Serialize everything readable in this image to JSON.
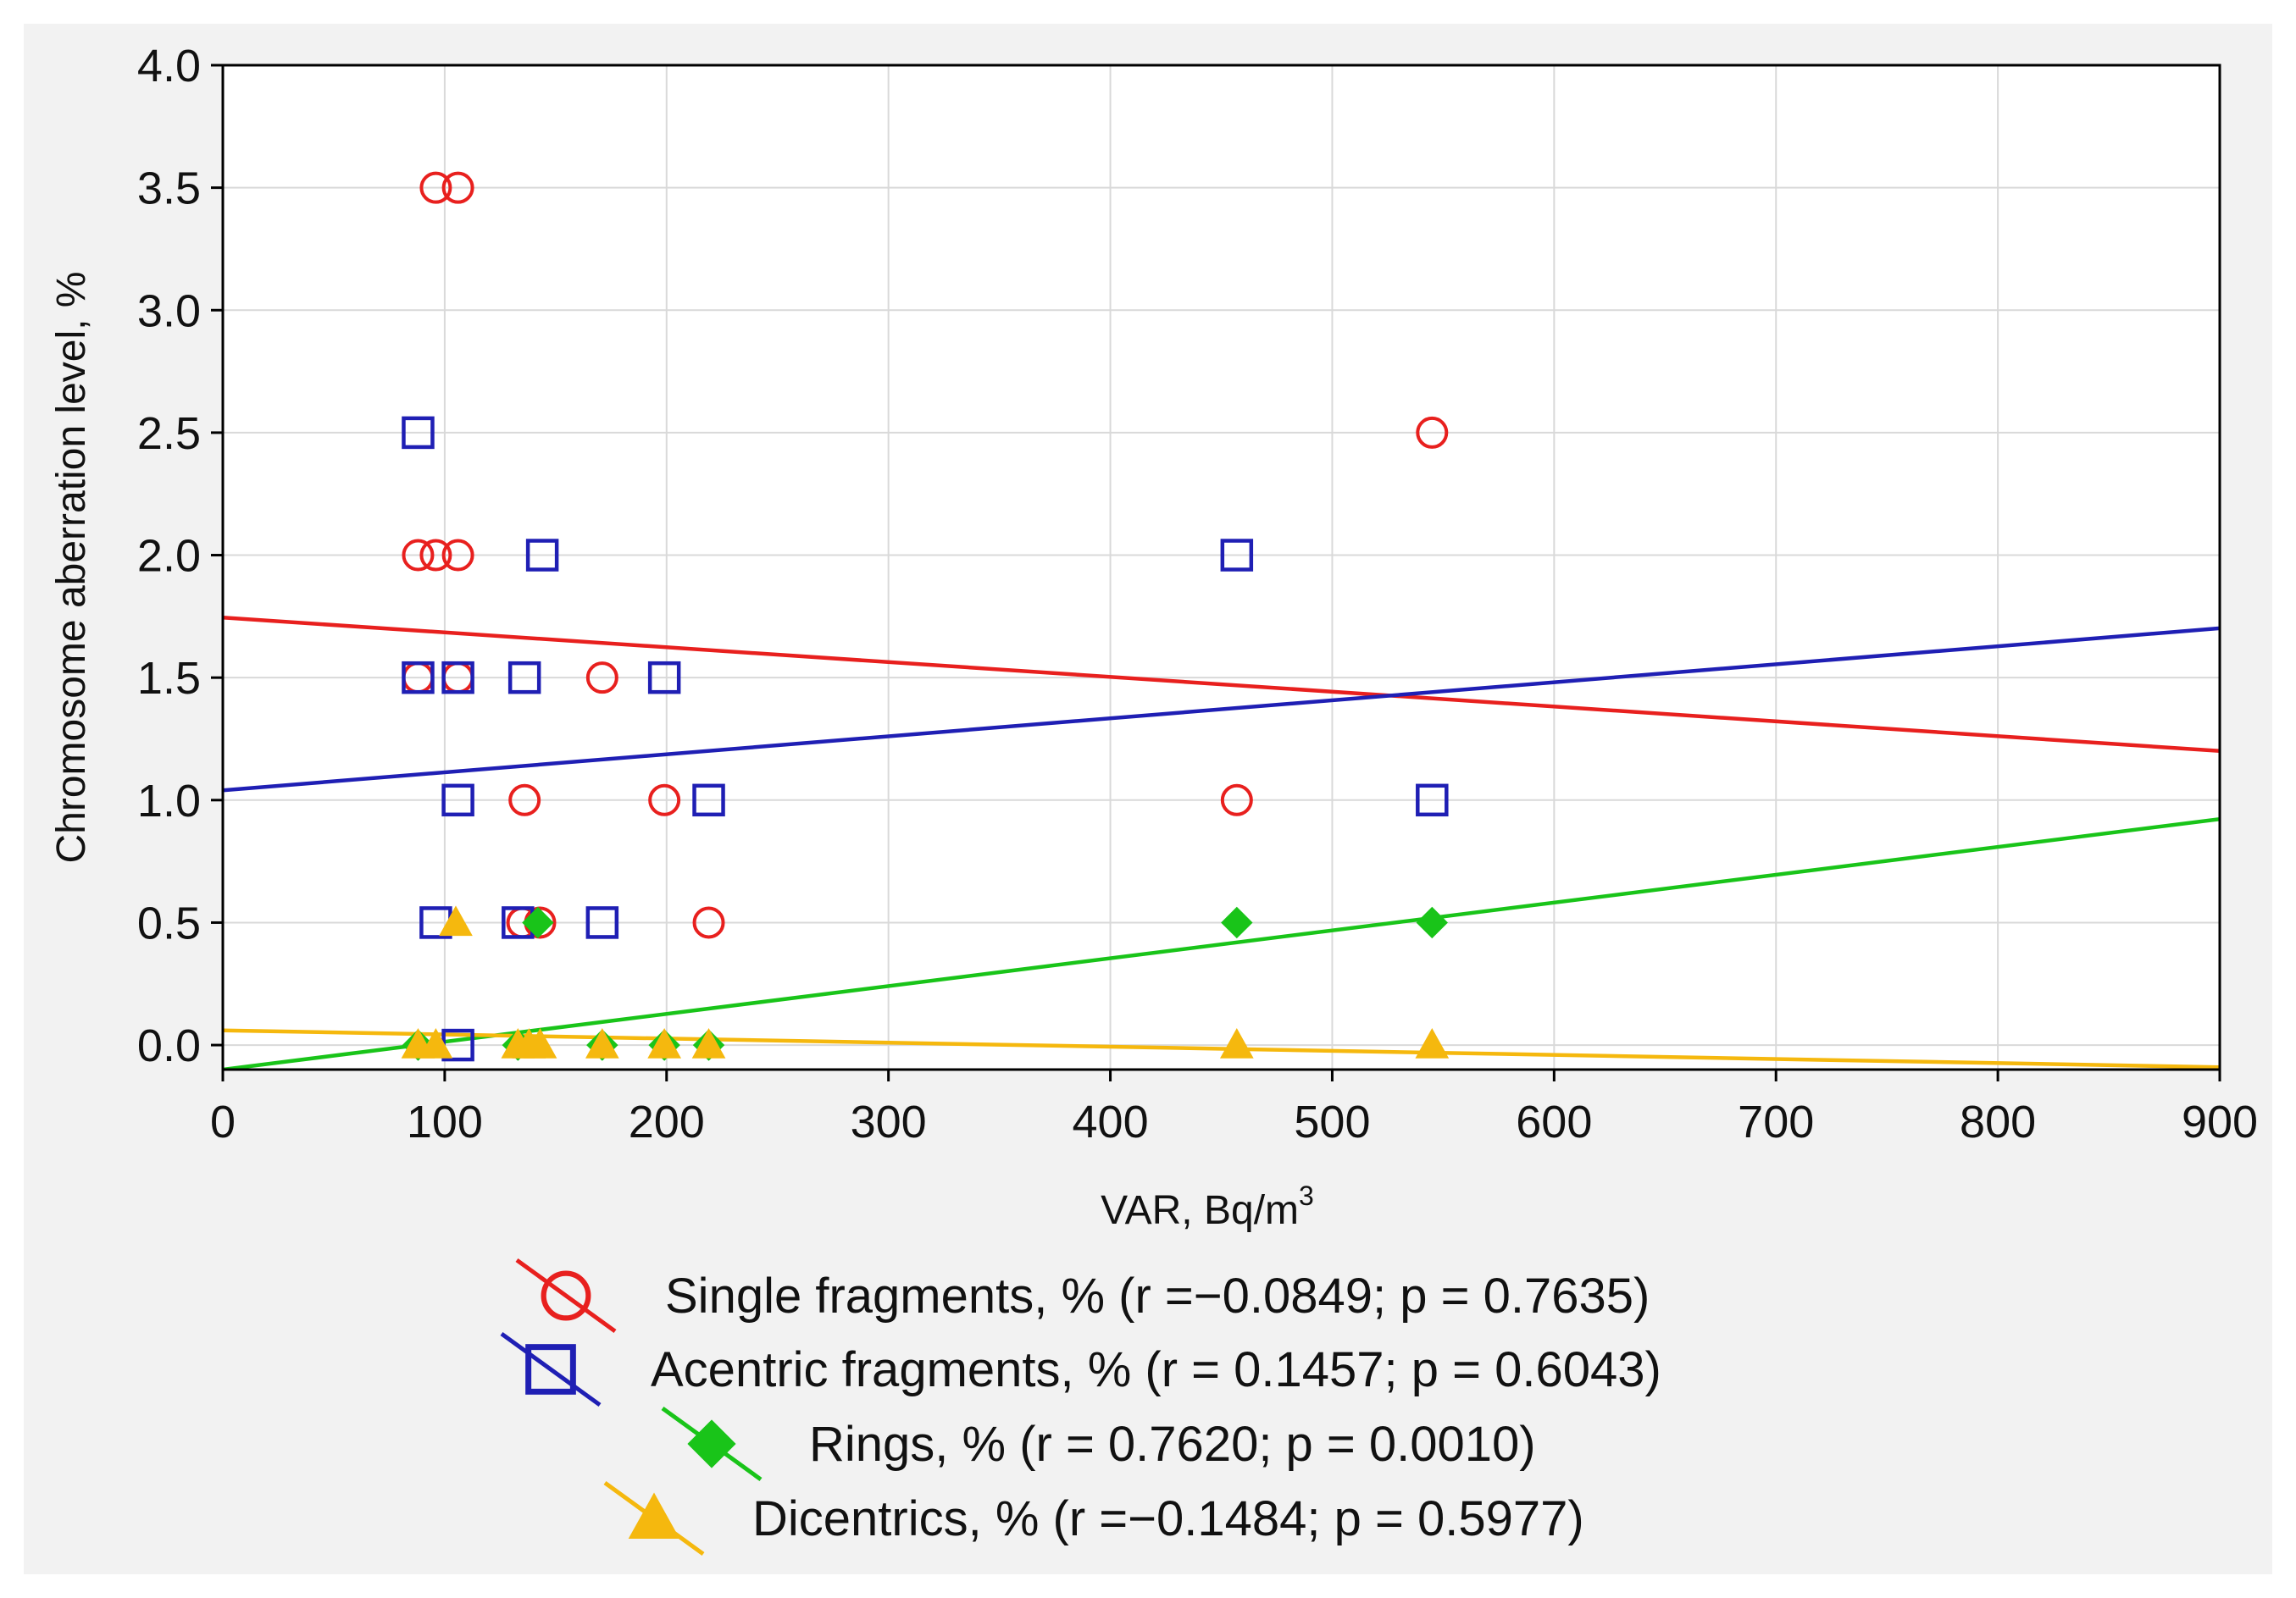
{
  "chart_data": {
    "type": "scatter",
    "xlabel_main": "VAR, Bq/m",
    "xlabel_sup": "3",
    "ylabel": "Chromosome aberration level, %",
    "xlim": [
      0,
      900
    ],
    "ylim": [
      -0.1,
      4.0
    ],
    "xticks": [
      "0",
      "100",
      "200",
      "300",
      "400",
      "500",
      "600",
      "700",
      "800",
      "900"
    ],
    "yticks": [
      "0.0",
      "0.5",
      "1.0",
      "1.5",
      "2.0",
      "2.5",
      "3.0",
      "3.5",
      "4.0"
    ],
    "grid": true,
    "legend_position": "bottom",
    "series": [
      {
        "name": "Single fragments, % (r =−0.0849; p = 0.7635)",
        "color": "#e8201e",
        "marker": "circle",
        "fit": {
          "intercept": 1.745,
          "slope": -0.000605
        },
        "points": [
          [
            96,
            3.5
          ],
          [
            106,
            3.5
          ],
          [
            88,
            2.0
          ],
          [
            96,
            2.0
          ],
          [
            106,
            2.0
          ],
          [
            88,
            1.5
          ],
          [
            106,
            1.5
          ],
          [
            171,
            1.5
          ],
          [
            136,
            1.0
          ],
          [
            199,
            1.0
          ],
          [
            457,
            1.0
          ],
          [
            545,
            2.5
          ],
          [
            135,
            0.5
          ],
          [
            143,
            0.5
          ],
          [
            219,
            0.5
          ]
        ]
      },
      {
        "name": "Acentric fragments, % (r = 0.1457; p = 0.6043)",
        "color": "#1f1fb4",
        "marker": "square",
        "fit": {
          "intercept": 1.04,
          "slope": 0.000735
        },
        "points": [
          [
            88,
            2.5
          ],
          [
            144,
            2.0
          ],
          [
            457,
            2.0
          ],
          [
            88,
            1.5
          ],
          [
            106,
            1.5
          ],
          [
            136,
            1.5
          ],
          [
            199,
            1.5
          ],
          [
            106,
            1.0
          ],
          [
            219,
            1.0
          ],
          [
            545,
            1.0
          ],
          [
            96,
            0.5
          ],
          [
            133,
            0.5
          ],
          [
            171,
            0.5
          ],
          [
            106,
            0.0
          ]
        ]
      },
      {
        "name": "Rings, % (r = 0.7620; p = 0.0010)",
        "color": "#19c419",
        "marker": "diamond",
        "fit": {
          "intercept": -0.1,
          "slope": 0.001136
        },
        "points": [
          [
            142,
            0.5
          ],
          [
            457,
            0.5
          ],
          [
            545,
            0.5
          ],
          [
            88,
            0.0
          ],
          [
            133,
            0.0
          ],
          [
            171,
            0.0
          ],
          [
            199,
            0.0
          ],
          [
            219,
            0.0
          ]
        ]
      },
      {
        "name": "Dicentrics, % (r =−0.1484; p = 0.5977)",
        "color": "#f5b80e",
        "marker": "triangle",
        "fit": {
          "intercept": 0.06,
          "slope": -0.000167
        },
        "points": [
          [
            105,
            0.5
          ],
          [
            88,
            0.0
          ],
          [
            96,
            0.0
          ],
          [
            133,
            0.0
          ],
          [
            138,
            0.0
          ],
          [
            143,
            0.0
          ],
          [
            171,
            0.0
          ],
          [
            199,
            0.0
          ],
          [
            219,
            0.0
          ],
          [
            457,
            0.0
          ],
          [
            545,
            0.0
          ]
        ]
      }
    ]
  }
}
